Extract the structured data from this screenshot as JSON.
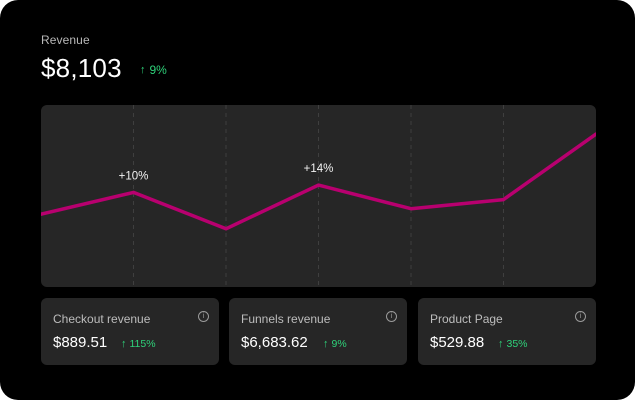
{
  "revenue": {
    "label": "Revenue",
    "value": "$8,103",
    "change": "9%",
    "change_arrow_icon": "arrow-up-icon"
  },
  "chart_data": {
    "type": "line",
    "x": [
      0,
      1,
      2,
      3,
      4,
      5,
      6
    ],
    "values": [
      40,
      52,
      32,
      56,
      43,
      48,
      84
    ],
    "ylim": [
      0,
      100
    ],
    "annotations": [
      {
        "index": 1,
        "text": "+10%"
      },
      {
        "index": 3,
        "text": "+14%"
      }
    ],
    "grid": "vertical-dashed",
    "line_color": "#b8006f",
    "background": "#262626"
  },
  "metrics": [
    {
      "label": "Checkout revenue",
      "value": "$889.51",
      "change": "115%",
      "icon": "info-icon"
    },
    {
      "label": "Funnels revenue",
      "value": "$6,683.62",
      "change": "9%",
      "icon": "info-icon"
    },
    {
      "label": "Product Page",
      "value": "$529.88",
      "change": "35%",
      "icon": "info-icon"
    }
  ],
  "colors": {
    "background": "#000000",
    "panel": "#262626",
    "positive": "#2fd27a",
    "accent": "#b8006f"
  }
}
